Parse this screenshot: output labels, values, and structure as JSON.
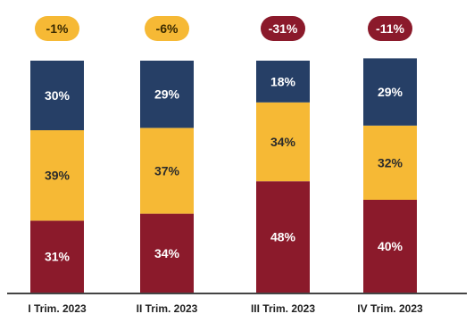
{
  "chart_data": {
    "type": "bar",
    "stacked": true,
    "categories": [
      "I Trim. 2023",
      "II Trim. 2023",
      "III Trim. 2023",
      "IV Trim. 2023"
    ],
    "series": [
      {
        "key": "bottom",
        "color": "#8b1a2b",
        "values": [
          31,
          34,
          48,
          40
        ],
        "labels": [
          "31%",
          "34%",
          "48%",
          "40%"
        ]
      },
      {
        "key": "middle",
        "color": "#f6b935",
        "values": [
          39,
          37,
          34,
          32
        ],
        "labels": [
          "39%",
          "37%",
          "34%",
          "32%"
        ]
      },
      {
        "key": "top",
        "color": "#263f66",
        "values": [
          30,
          29,
          18,
          29
        ],
        "labels": [
          "30%",
          "29%",
          "18%",
          "29%"
        ]
      }
    ],
    "badges": [
      {
        "text": "-1%",
        "color": "#f6b935",
        "text_color": "#3a2a00"
      },
      {
        "text": "-6%",
        "color": "#f6b935",
        "text_color": "#3a2a00"
      },
      {
        "text": "-31%",
        "color": "#8b1a2b",
        "text_color": "#ffffff"
      },
      {
        "text": "-11%",
        "color": "#8b1a2b",
        "text_color": "#ffffff"
      }
    ],
    "ylim": [
      0,
      100
    ],
    "grid": false,
    "legend": "none",
    "baseline_color": "#444444"
  }
}
